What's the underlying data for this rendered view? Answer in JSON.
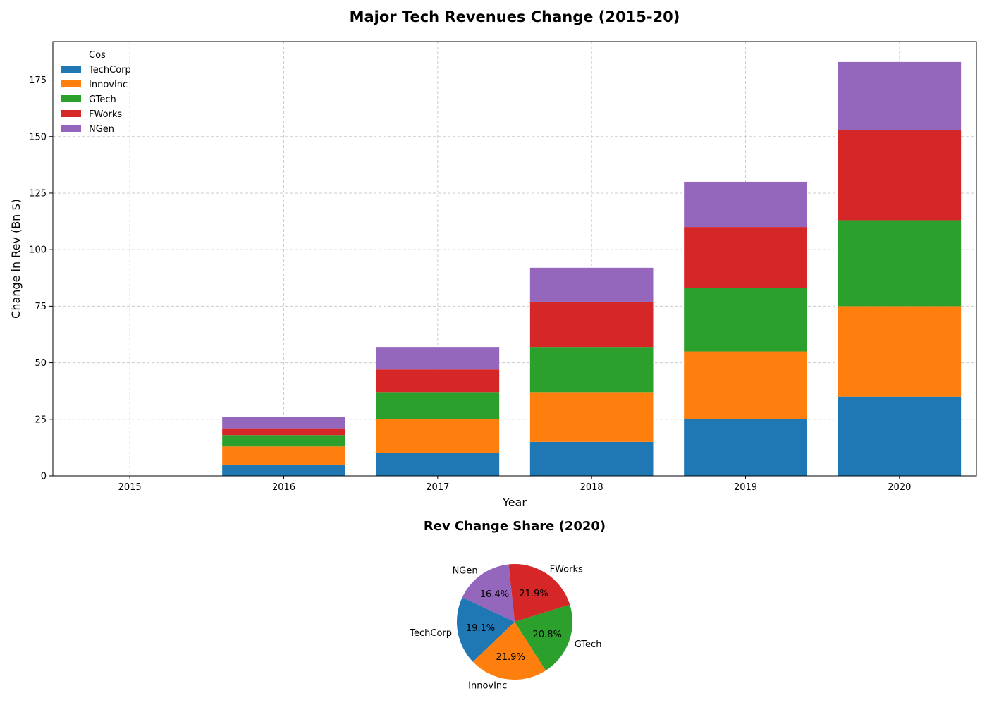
{
  "colors": {
    "TechCorp": "#1f77b4",
    "InnovInc": "#ff7f0e",
    "GTech": "#2ca02c",
    "FWorks": "#d62728",
    "NGen": "#9467bd",
    "grid": "#cccccc",
    "axis": "#000000"
  },
  "chart_data": [
    {
      "type": "bar",
      "stacked": true,
      "title": "Major Tech Revenues Change (2015-20)",
      "xlabel": "Year",
      "ylabel": "Change in Rev (Bn $)",
      "categories": [
        "2015",
        "2016",
        "2017",
        "2018",
        "2019",
        "2020"
      ],
      "ylim": [
        0,
        192
      ],
      "yticks": [
        0,
        25,
        50,
        75,
        100,
        125,
        150,
        175
      ],
      "grid": true,
      "legend": {
        "title": "Cos",
        "placement": "top-left"
      },
      "series": [
        {
          "name": "TechCorp",
          "values": [
            0,
            5,
            10,
            15,
            25,
            35
          ]
        },
        {
          "name": "InnovInc",
          "values": [
            0,
            8,
            15,
            22,
            30,
            40
          ]
        },
        {
          "name": "GTech",
          "values": [
            0,
            5,
            12,
            20,
            28,
            38
          ]
        },
        {
          "name": "FWorks",
          "values": [
            0,
            3,
            10,
            20,
            27,
            40
          ]
        },
        {
          "name": "NGen",
          "values": [
            0,
            5,
            10,
            15,
            20,
            30
          ]
        }
      ]
    },
    {
      "type": "pie",
      "title": "Rev Change Share (2020)",
      "labels": [
        "TechCorp",
        "InnovInc",
        "GTech",
        "FWorks",
        "NGen"
      ],
      "values": [
        35,
        40,
        38,
        40,
        30
      ],
      "percent_labels": [
        "19.1%",
        "21.9%",
        "20.8%",
        "21.9%",
        "16.4%"
      ]
    }
  ]
}
